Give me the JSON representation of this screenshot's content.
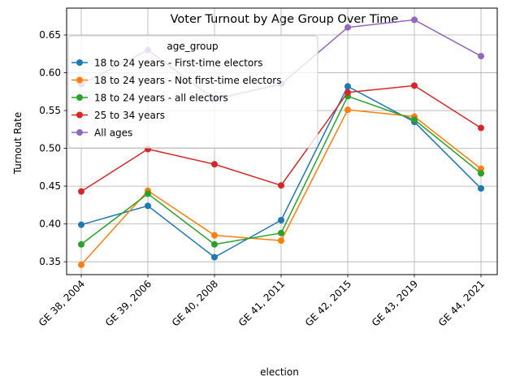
{
  "chart_data": {
    "type": "line",
    "title": "Voter Turnout by Age Group Over Time",
    "xlabel": "election",
    "ylabel": "Turnout Rate",
    "categories": [
      "GE 38, 2004",
      "GE 39, 2006",
      "GE 40, 2008",
      "GE 41, 2011",
      "GE 42, 2015",
      "GE 43, 2019",
      "GE 44, 2021"
    ],
    "ylim": [
      0.333,
      0.6855
    ],
    "yticks": [
      0.35,
      0.4,
      0.45,
      0.5,
      0.55,
      0.6,
      0.65
    ],
    "ytick_labels": [
      "0.35",
      "0.40",
      "0.45",
      "0.50",
      "0.55",
      "0.60",
      "0.65"
    ],
    "grid": true,
    "legend": {
      "title": "age_group",
      "placement": "top-left"
    },
    "series": [
      {
        "name": "18 to 24 years - First-time electors",
        "color": "#1f77b4",
        "values": [
          0.399,
          0.424,
          0.356,
          0.405,
          0.582,
          0.535,
          0.447
        ]
      },
      {
        "name": "18 to 24 years - Not first-time electors",
        "color": "#ff7f0e",
        "values": [
          0.346,
          0.444,
          0.385,
          0.378,
          0.551,
          0.542,
          0.473
        ]
      },
      {
        "name": "18 to 24 years - all electors",
        "color": "#2ca02c",
        "values": [
          0.373,
          0.44,
          0.373,
          0.388,
          0.569,
          0.538,
          0.467
        ]
      },
      {
        "name": "25 to 34 years",
        "color": "#d62728",
        "values": [
          0.443,
          0.499,
          0.479,
          0.451,
          0.574,
          0.583,
          0.527
        ]
      },
      {
        "name": "All ages",
        "color": "#9467bd",
        "values": [
          0.585,
          0.63,
          0.565,
          0.585,
          0.66,
          0.67,
          0.622
        ]
      }
    ]
  }
}
